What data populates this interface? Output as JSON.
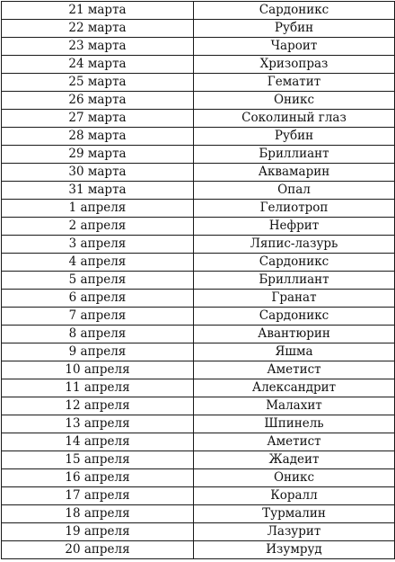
{
  "table": {
    "rows": [
      {
        "date": "21 марта",
        "stone": "Сардоникс"
      },
      {
        "date": "22 марта",
        "stone": "Рубин"
      },
      {
        "date": "23 марта",
        "stone": "Чароит"
      },
      {
        "date": "24 марта",
        "stone": "Хризопраз"
      },
      {
        "date": "25 марта",
        "stone": "Гематит"
      },
      {
        "date": "26 марта",
        "stone": "Оникс"
      },
      {
        "date": "27 марта",
        "stone": "Соколиный глаз"
      },
      {
        "date": "28 марта",
        "stone": "Рубин"
      },
      {
        "date": "29 марта",
        "stone": "Бриллиант"
      },
      {
        "date": "30 марта",
        "stone": "Аквамарин"
      },
      {
        "date": "31 марта",
        "stone": "Опал"
      },
      {
        "date": "1 апреля",
        "stone": "Гелиотроп"
      },
      {
        "date": "2 апреля",
        "stone": "Нефрит"
      },
      {
        "date": "3 апреля",
        "stone": "Ляпис-лазурь"
      },
      {
        "date": "4 апреля",
        "stone": "Сардоникс"
      },
      {
        "date": "5 апреля",
        "stone": "Бриллиант"
      },
      {
        "date": "6 апреля",
        "stone": "Гранат"
      },
      {
        "date": "7 апреля",
        "stone": "Сардоникс"
      },
      {
        "date": "8 апреля",
        "stone": "Авантюрин"
      },
      {
        "date": "9 апреля",
        "stone": "Яшма"
      },
      {
        "date": "10 апреля",
        "stone": "Аметист"
      },
      {
        "date": "11 апреля",
        "stone": "Александрит"
      },
      {
        "date": "12 апреля",
        "stone": "Малахит"
      },
      {
        "date": "13 апреля",
        "stone": "Шпинель"
      },
      {
        "date": "14 апреля",
        "stone": "Аметист"
      },
      {
        "date": "15 апреля",
        "stone": "Жадеит"
      },
      {
        "date": "16 апреля",
        "stone": "Оникс"
      },
      {
        "date": "17 апреля",
        "stone": "Коралл"
      },
      {
        "date": "18 апреля",
        "stone": "Турмалин"
      },
      {
        "date": "19 апреля",
        "stone": "Лазурит"
      },
      {
        "date": "20 апреля",
        "stone": "Изумруд"
      }
    ]
  }
}
